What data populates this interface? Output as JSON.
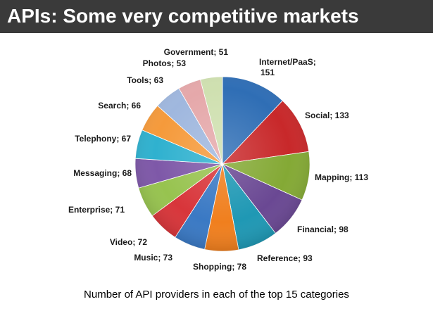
{
  "header": {
    "title": "APIs: Some very competitive markets"
  },
  "caption": "Number of API providers in each of the top 15 categories",
  "chart_data": {
    "type": "pie",
    "title": "",
    "legend": "none (labels next to slices)",
    "slices": [
      {
        "label": "Internet/PaaS",
        "value": 151,
        "color": "#2f6eb5",
        "text": "Internet/PaaS;",
        "text2": "151"
      },
      {
        "label": "Social",
        "value": 133,
        "color": "#c8282a",
        "text": "Social; 133"
      },
      {
        "label": "Mapping",
        "value": 113,
        "color": "#84a935",
        "text": "Mapping; 113"
      },
      {
        "label": "Financial",
        "value": 98,
        "color": "#6a4893",
        "text": "Financial; 98"
      },
      {
        "label": "Reference",
        "value": 93,
        "color": "#1f98b4",
        "text": "Reference; 93"
      },
      {
        "label": "Shopping",
        "value": 78,
        "color": "#f07f1e",
        "text": "Shopping; 78"
      },
      {
        "label": "Music",
        "value": 73,
        "color": "#3a79c4",
        "text": "Music; 73"
      },
      {
        "label": "Video",
        "value": 72,
        "color": "#d8353a",
        "text": "Video; 72"
      },
      {
        "label": "Enterprise",
        "value": 71,
        "color": "#97c34f",
        "text": "Enterprise; 71"
      },
      {
        "label": "Messaging",
        "value": 68,
        "color": "#7e58a8",
        "text": "Messaging; 68"
      },
      {
        "label": "Telephony",
        "value": 67,
        "color": "#2fb1cf",
        "text": "Telephony; 67"
      },
      {
        "label": "Search",
        "value": 66,
        "color": "#f59a3b",
        "text": "Search; 66"
      },
      {
        "label": "Tools",
        "value": 63,
        "color": "#9fb7de",
        "text": "Tools; 63"
      },
      {
        "label": "Photos",
        "value": 53,
        "color": "#e5a8aa",
        "text": "Photos; 53"
      },
      {
        "label": "Government",
        "value": 51,
        "color": "#cfe0b0",
        "text": "Government; 51"
      }
    ]
  }
}
